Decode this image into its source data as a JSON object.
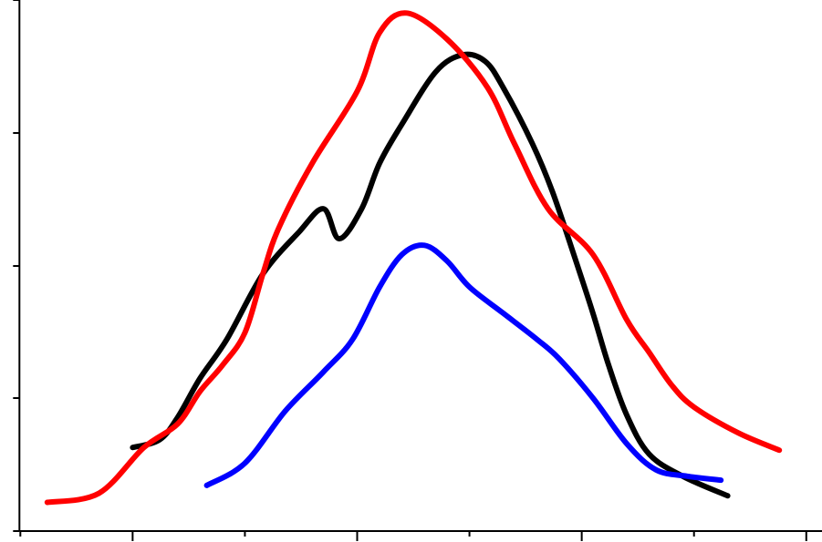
{
  "chart_data": {
    "type": "line",
    "title": "",
    "xlabel": "",
    "ylabel": "",
    "xlim": [
      -5,
      357
    ],
    "ylim": [
      -7,
      400
    ],
    "x_ticks_major": [
      50,
      150,
      250,
      350
    ],
    "x_ticks_minor": [
      0,
      100,
      200,
      300
    ],
    "y_ticks_major": [
      0,
      100,
      200,
      300,
      400
    ],
    "grid": false,
    "legend": "none",
    "series": [
      {
        "color": "#000000",
        "points": [
          [
            50,
            57
          ],
          [
            62,
            63
          ],
          [
            70,
            80
          ],
          [
            80,
            110
          ],
          [
            92,
            140
          ],
          [
            108,
            190
          ],
          [
            124,
            222
          ],
          [
            135,
            240
          ],
          [
            142,
            217
          ],
          [
            152,
            240
          ],
          [
            160,
            275
          ],
          [
            170,
            305
          ],
          [
            185,
            345
          ],
          [
            197,
            358
          ],
          [
            207,
            353
          ],
          [
            215,
            333
          ],
          [
            228,
            290
          ],
          [
            237,
            253
          ],
          [
            247,
            202
          ],
          [
            255,
            160
          ],
          [
            262,
            120
          ],
          [
            270,
            82
          ],
          [
            280,
            52
          ],
          [
            295,
            35
          ],
          [
            315,
            20
          ]
        ]
      },
      {
        "color": "#ff0000",
        "points": [
          [
            12,
            15
          ],
          [
            35,
            22
          ],
          [
            55,
            57
          ],
          [
            70,
            75
          ],
          [
            80,
            100
          ],
          [
            90,
            120
          ],
          [
            100,
            145
          ],
          [
            108,
            190
          ],
          [
            115,
            225
          ],
          [
            130,
            275
          ],
          [
            150,
            330
          ],
          [
            160,
            375
          ],
          [
            172,
            390
          ],
          [
            190,
            370
          ],
          [
            208,
            333
          ],
          [
            220,
            290
          ],
          [
            235,
            240
          ],
          [
            255,
            205
          ],
          [
            270,
            155
          ],
          [
            280,
            130
          ],
          [
            290,
            105
          ],
          [
            300,
            88
          ],
          [
            320,
            68
          ],
          [
            338,
            55
          ]
        ]
      },
      {
        "color": "#0000ff",
        "points": [
          [
            83,
            28
          ],
          [
            100,
            45
          ],
          [
            118,
            85
          ],
          [
            135,
            115
          ],
          [
            148,
            140
          ],
          [
            160,
            180
          ],
          [
            170,
            205
          ],
          [
            180,
            212
          ],
          [
            190,
            200
          ],
          [
            200,
            180
          ],
          [
            215,
            160
          ],
          [
            230,
            140
          ],
          [
            240,
            125
          ],
          [
            255,
            95
          ],
          [
            270,
            60
          ],
          [
            283,
            40
          ],
          [
            297,
            35
          ],
          [
            312,
            32
          ]
        ]
      }
    ]
  }
}
